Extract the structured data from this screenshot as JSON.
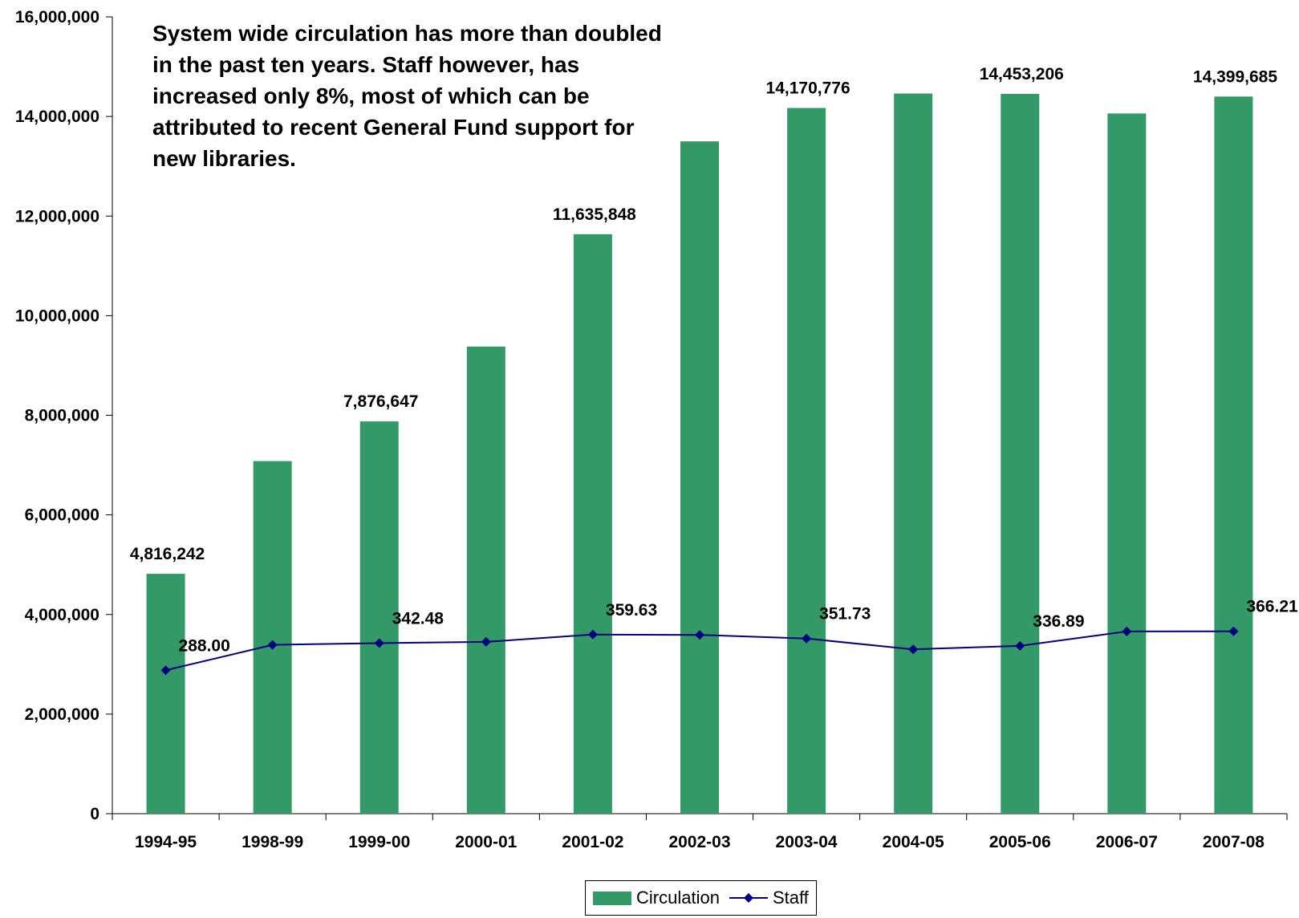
{
  "colors": {
    "bar": "#339966",
    "line": "#000080",
    "axis": "#000000"
  },
  "annotation": {
    "text": "System wide circulation has more than doubled in the past ten years.  Staff however, has increased only 8%, most of which can be attributed to recent General Fund support for new libraries."
  },
  "legend": {
    "circulation": "Circulation",
    "staff": "Staff"
  },
  "chart_data": {
    "type": "bar",
    "categories": [
      "1994-95",
      "1998-99",
      "1999-00",
      "2000-01",
      "2001-02",
      "2002-03",
      "2003-04",
      "2004-05",
      "2005-06",
      "2006-07",
      "2007-08"
    ],
    "ylim": [
      0,
      16000000
    ],
    "yticks": [
      0,
      2000000,
      4000000,
      6000000,
      8000000,
      10000000,
      12000000,
      14000000,
      16000000
    ],
    "ytick_labels": [
      "0",
      "2,000,000",
      "4,000,000",
      "6,000,000",
      "8,000,000",
      "10,000,000",
      "12,000,000",
      "14,000,000",
      "16,000,000"
    ],
    "legend_position": "bottom",
    "grid": false,
    "series": [
      {
        "name": "Circulation",
        "type": "bar",
        "values": [
          4816242,
          7080000,
          7876647,
          9380000,
          11635848,
          13500000,
          14170776,
          14460000,
          14453206,
          14060000,
          14399685
        ],
        "data_labels": [
          "4,816,242",
          "",
          "7,876,647",
          "",
          "11,635,848",
          "",
          "14,170,776",
          "",
          "14,453,206",
          "",
          "14,399,685"
        ]
      },
      {
        "name": "Staff",
        "type": "line",
        "secondary_axis_range": [
          0,
          1600
        ],
        "values": [
          288.0,
          339,
          342.48,
          345,
          359.63,
          359,
          351.73,
          330,
          336.89,
          366,
          366.21
        ],
        "data_labels": [
          "288.00",
          "",
          "342.48",
          "",
          "359.63",
          "",
          "351.73",
          "",
          "336.89",
          "",
          "366.21"
        ]
      }
    ]
  }
}
